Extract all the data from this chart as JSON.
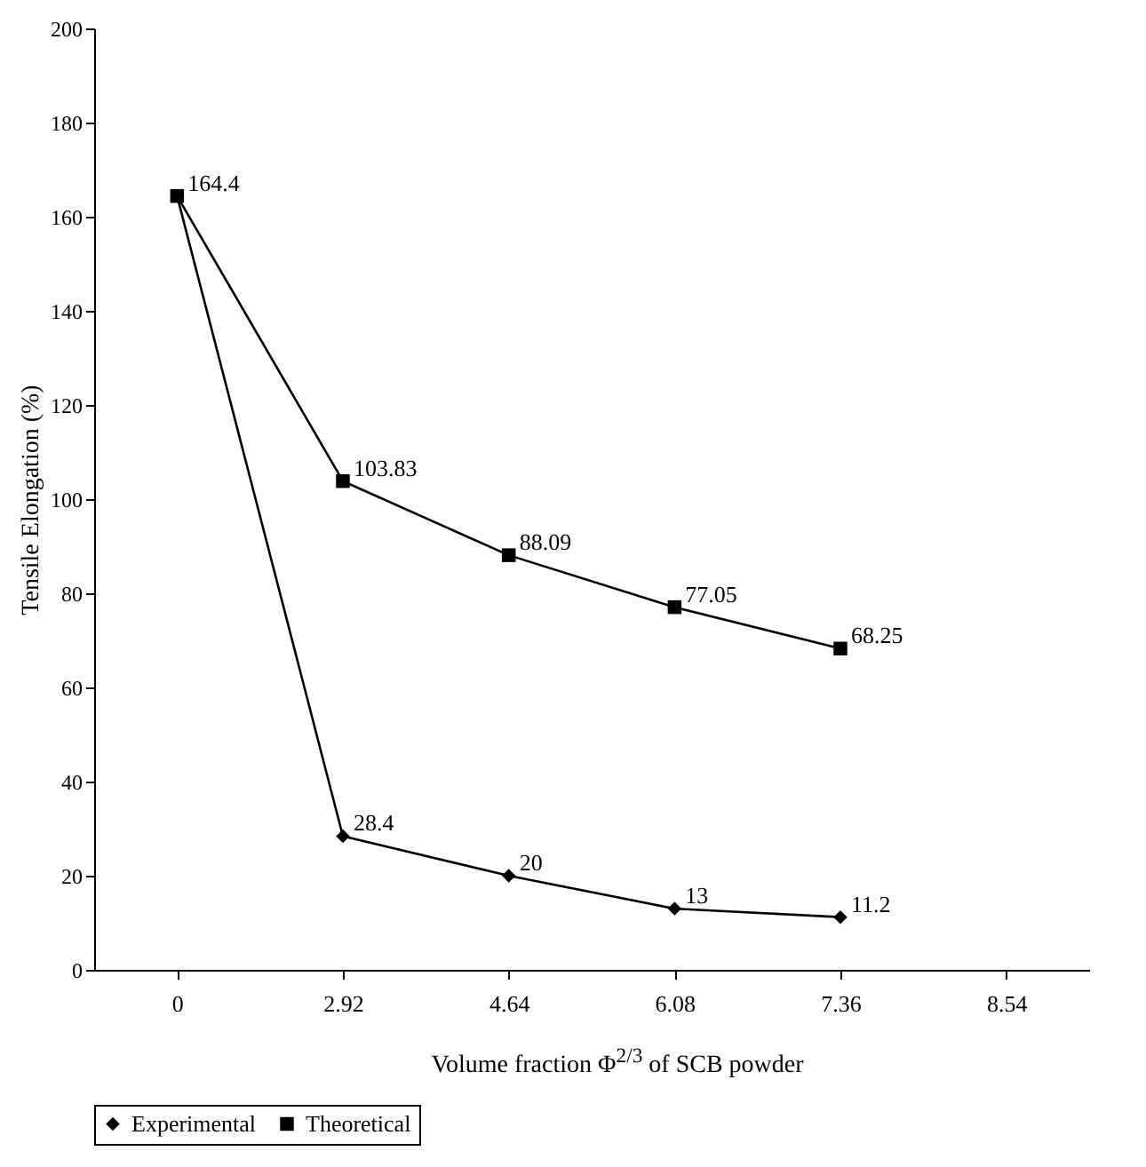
{
  "chart_data": {
    "type": "line",
    "xlabel": "Volume fraction Φ$^{2/3}$ of SCB powder",
    "ylabel": "Tensile Elongation (%)",
    "categories": [
      "0",
      "2.92",
      "4.64",
      "6.08",
      "7.36",
      "8.54"
    ],
    "series": [
      {
        "name": "Experimental",
        "color": "#000000",
        "marker": "diamond",
        "values": [
          164.4,
          28.4,
          20,
          13,
          11.2,
          null
        ],
        "value_labels": [
          null,
          "28.4",
          "20",
          "13",
          "11.2",
          null
        ]
      },
      {
        "name": "Theoretical",
        "color": "#000000",
        "marker": "square",
        "values": [
          164.4,
          103.83,
          88.09,
          77.05,
          68.25,
          null
        ],
        "value_labels": [
          "164.4",
          "103.83",
          "88.09",
          "77.05",
          "68.25",
          null
        ]
      }
    ],
    "ylim": [
      0,
      200
    ],
    "yticks": [
      0,
      20,
      40,
      60,
      80,
      100,
      120,
      140,
      160,
      180,
      200
    ],
    "grid": false,
    "legend": "bottom",
    "line_style": "solid"
  }
}
